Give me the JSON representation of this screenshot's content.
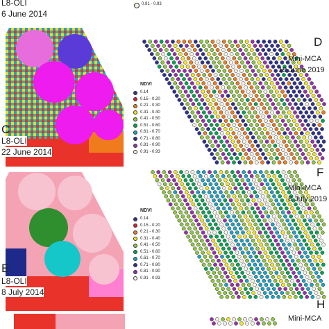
{
  "left": {
    "top_label_sensor": "L8-OLI",
    "top_label_date": "6 June 2014",
    "panel_c": {
      "letter": "C",
      "sensor": "L8-OLI",
      "date": "22 June 2014"
    },
    "panel_e": {
      "letter": "E",
      "sensor": "L8-OLI",
      "date": "8 July 2014"
    }
  },
  "right": {
    "top_legend_range": "0.91 - 0.93",
    "panel_d": {
      "letter": "D",
      "sensor": "Mini-MCA",
      "date": "19 June 2019"
    },
    "panel_f": {
      "letter": "F",
      "sensor": "Mini-MCA",
      "date": "8 July 2019"
    },
    "panel_h": {
      "letter": "H",
      "sensor": "Mini-MCA"
    }
  },
  "legend": {
    "title": "NDVI",
    "classes": [
      {
        "range": "0.14",
        "color": "#4b2a8f"
      },
      {
        "range": "0.15 - 0.20",
        "color": "#e0202a"
      },
      {
        "range": "0.21 - 0.30",
        "color": "#f07b1c"
      },
      {
        "range": "0.31 - 0.40",
        "color": "#f2e51f"
      },
      {
        "range": "0.41 - 0.50",
        "color": "#8dc63f"
      },
      {
        "range": "0.51 - 0.60",
        "color": "#00a651"
      },
      {
        "range": "0.61 - 0.70",
        "color": "#1aa4c8"
      },
      {
        "range": "0.71 - 0.80",
        "color": "#2e3192"
      },
      {
        "range": "0.81 - 0.90",
        "color": "#9b2fae"
      },
      {
        "range": "0.91 - 0.93",
        "color": "#f3f0e6"
      }
    ]
  }
}
